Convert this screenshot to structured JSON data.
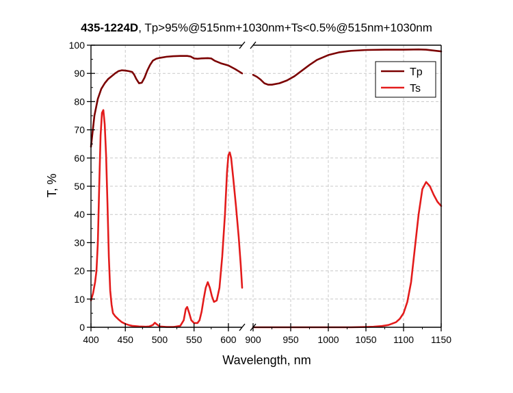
{
  "chart_data": {
    "type": "line",
    "title_bold": "435-1224D",
    "title_rest": ", Tp>95%@515nm+1030nm+Ts<0.5%@515nm+1030nm",
    "xlabel": "Wavelength, nm",
    "ylabel": "T, %",
    "grid": true,
    "legend_position": "top-right",
    "axis_break": "between 620 and 900 nm",
    "ylim": [
      0,
      100
    ],
    "left_segment_xlim": [
      400,
      620
    ],
    "right_segment_xlim": [
      900,
      1150
    ],
    "x_ticks_left": [
      "400",
      "450",
      "500",
      "550",
      "600"
    ],
    "x_ticks_right": [
      "900",
      "950",
      "1000",
      "1050",
      "1100",
      "1150"
    ],
    "y_ticks": [
      "0",
      "10",
      "20",
      "30",
      "40",
      "50",
      "60",
      "70",
      "80",
      "90",
      "100"
    ],
    "series": [
      {
        "name": "Tp",
        "color": "#7b0000",
        "left": [
          [
            400,
            64
          ],
          [
            405,
            75
          ],
          [
            410,
            81
          ],
          [
            415,
            84.5
          ],
          [
            420,
            86.5
          ],
          [
            425,
            88
          ],
          [
            430,
            89
          ],
          [
            435,
            90
          ],
          [
            440,
            90.8
          ],
          [
            445,
            91.1
          ],
          [
            450,
            91
          ],
          [
            455,
            90.8
          ],
          [
            460,
            90.5
          ],
          [
            463,
            89.5
          ],
          [
            466,
            88
          ],
          [
            470,
            86.5
          ],
          [
            474,
            86.7
          ],
          [
            478,
            88.5
          ],
          [
            482,
            91
          ],
          [
            486,
            93
          ],
          [
            490,
            94.5
          ],
          [
            495,
            95.2
          ],
          [
            500,
            95.5
          ],
          [
            510,
            95.9
          ],
          [
            520,
            96.1
          ],
          [
            530,
            96.2
          ],
          [
            540,
            96.2
          ],
          [
            545,
            96
          ],
          [
            550,
            95.3
          ],
          [
            555,
            95.2
          ],
          [
            560,
            95.3
          ],
          [
            570,
            95.4
          ],
          [
            575,
            95.3
          ],
          [
            580,
            94.5
          ],
          [
            590,
            93.5
          ],
          [
            600,
            92.8
          ],
          [
            610,
            91.5
          ],
          [
            620,
            90
          ]
        ],
        "right": [
          [
            900,
            89.5
          ],
          [
            905,
            88.8
          ],
          [
            910,
            87.8
          ],
          [
            915,
            86.5
          ],
          [
            920,
            86
          ],
          [
            925,
            86
          ],
          [
            935,
            86.5
          ],
          [
            945,
            87.5
          ],
          [
            955,
            89
          ],
          [
            965,
            91
          ],
          [
            975,
            93
          ],
          [
            985,
            94.8
          ],
          [
            1000,
            96.5
          ],
          [
            1015,
            97.5
          ],
          [
            1030,
            98
          ],
          [
            1050,
            98.3
          ],
          [
            1075,
            98.4
          ],
          [
            1100,
            98.4
          ],
          [
            1120,
            98.5
          ],
          [
            1130,
            98.4
          ],
          [
            1140,
            98.1
          ],
          [
            1150,
            97.8
          ]
        ]
      },
      {
        "name": "Ts",
        "color": "#e31b1b",
        "left": [
          [
            400,
            9.5
          ],
          [
            403,
            12
          ],
          [
            406,
            16
          ],
          [
            408,
            20
          ],
          [
            410,
            30
          ],
          [
            412,
            50
          ],
          [
            414,
            68
          ],
          [
            416,
            76
          ],
          [
            418,
            77
          ],
          [
            420,
            72
          ],
          [
            422,
            61
          ],
          [
            424,
            44
          ],
          [
            426,
            25
          ],
          [
            428,
            13
          ],
          [
            430,
            8
          ],
          [
            432,
            5
          ],
          [
            435,
            4
          ],
          [
            440,
            2.8
          ],
          [
            445,
            1.8
          ],
          [
            450,
            1.2
          ],
          [
            455,
            0.8
          ],
          [
            460,
            0.5
          ],
          [
            470,
            0.3
          ],
          [
            480,
            0.2
          ],
          [
            485,
            0.3
          ],
          [
            490,
            0.8
          ],
          [
            493,
            1.6
          ],
          [
            496,
            1
          ],
          [
            500,
            0.3
          ],
          [
            510,
            0.1
          ],
          [
            520,
            0.1
          ],
          [
            530,
            0.5
          ],
          [
            535,
            2.5
          ],
          [
            538,
            6.5
          ],
          [
            540,
            7.2
          ],
          [
            543,
            5
          ],
          [
            546,
            2.5
          ],
          [
            550,
            1.5
          ],
          [
            555,
            1.5
          ],
          [
            558,
            2.5
          ],
          [
            561,
            5.5
          ],
          [
            564,
            10
          ],
          [
            567,
            14
          ],
          [
            570,
            16
          ],
          [
            573,
            14
          ],
          [
            576,
            11
          ],
          [
            579,
            9
          ],
          [
            583,
            9.5
          ],
          [
            587,
            14
          ],
          [
            591,
            25
          ],
          [
            595,
            40
          ],
          [
            598,
            55
          ],
          [
            600,
            61
          ],
          [
            602,
            62
          ],
          [
            604,
            60
          ],
          [
            607,
            53
          ],
          [
            611,
            43
          ],
          [
            615,
            32
          ],
          [
            618,
            22
          ],
          [
            620,
            14
          ]
        ],
        "right": [
          [
            900,
            0
          ],
          [
            950,
            0
          ],
          [
            1000,
            0
          ],
          [
            1030,
            0
          ],
          [
            1050,
            0.1
          ],
          [
            1060,
            0.2
          ],
          [
            1070,
            0.4
          ],
          [
            1080,
            0.8
          ],
          [
            1090,
            1.8
          ],
          [
            1095,
            3
          ],
          [
            1100,
            5
          ],
          [
            1105,
            9
          ],
          [
            1110,
            16
          ],
          [
            1115,
            28
          ],
          [
            1120,
            40
          ],
          [
            1125,
            49
          ],
          [
            1130,
            51.5
          ],
          [
            1135,
            50
          ],
          [
            1140,
            47
          ],
          [
            1145,
            44.5
          ],
          [
            1150,
            43
          ]
        ]
      }
    ]
  }
}
